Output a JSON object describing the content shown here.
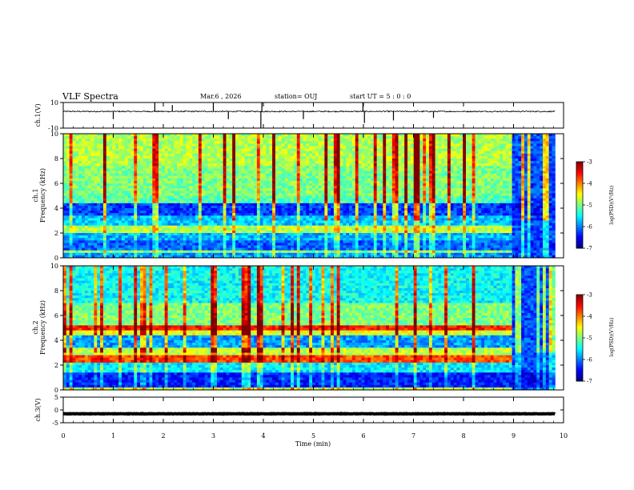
{
  "header": {
    "title": "VLF Spectra",
    "date": "Mar.6 , 2026",
    "station": "station= OUJ",
    "start": "start UT = 5 : 0 : 0"
  },
  "chart_data": [
    {
      "id": "ch1-waveform",
      "type": "line",
      "ylabel": "ch.1(V)",
      "ylim": [
        -10,
        10
      ],
      "yticks": [
        "10",
        "-10"
      ],
      "baseline": 3,
      "noise": 0.45,
      "spikes": [
        {
          "t": 1.0,
          "v": -3
        },
        {
          "t": 1.83,
          "v": 10
        },
        {
          "t": 2.18,
          "v": 8
        },
        {
          "t": 3.0,
          "v": 10
        },
        {
          "t": 3.3,
          "v": -3
        },
        {
          "t": 3.95,
          "v": -10
        },
        {
          "t": 3.97,
          "v": 10
        },
        {
          "t": 4.8,
          "v": -3
        },
        {
          "t": 5.99,
          "v": 10
        },
        {
          "t": 6.02,
          "v": -6
        },
        {
          "t": 6.6,
          "v": -4
        },
        {
          "t": 7.4,
          "v": -2
        }
      ]
    },
    {
      "id": "ch1-spectrogram",
      "type": "heatmap",
      "ylabel": "ch.1",
      "ylabel2": "Frequency (kHz)",
      "ylim": [
        0,
        10
      ],
      "yticks": [
        "0",
        "2",
        "4",
        "6",
        "8",
        "10"
      ],
      "bands": [
        {
          "f0": 0.0,
          "f1": 0.45,
          "level": 0.28
        },
        {
          "f0": 0.45,
          "f1": 0.7,
          "level": 0.5
        },
        {
          "f0": 0.7,
          "f1": 1.5,
          "level": 0.22
        },
        {
          "f0": 1.5,
          "f1": 2.1,
          "level": 0.3
        },
        {
          "f0": 2.1,
          "f1": 2.6,
          "level": 0.55
        },
        {
          "f0": 2.6,
          "f1": 3.4,
          "level": 0.32
        },
        {
          "f0": 3.4,
          "f1": 4.5,
          "level": 0.18
        },
        {
          "f0": 4.5,
          "f1": 5.0,
          "level": 0.46
        },
        {
          "f0": 5.0,
          "f1": 7.5,
          "level": 0.5
        },
        {
          "f0": 7.5,
          "f1": 10.0,
          "level": 0.55
        }
      ],
      "quiet_after_min": 9.0,
      "colorbar": {
        "label": "log(PSD)(V²/Hz)",
        "ticks": [
          "-3",
          "-4",
          "-5",
          "-6",
          "-7"
        ],
        "range": [
          -7,
          -3
        ]
      }
    },
    {
      "id": "ch2-spectrogram",
      "type": "heatmap",
      "ylabel": "ch.2",
      "ylabel2": "Frequency (kHz)",
      "ylim": [
        0,
        10
      ],
      "yticks": [
        "0",
        "2",
        "4",
        "6",
        "8",
        "10"
      ],
      "bands": [
        {
          "f0": 0.0,
          "f1": 0.3,
          "level": 0.55
        },
        {
          "f0": 0.3,
          "f1": 1.5,
          "level": 0.15
        },
        {
          "f0": 1.5,
          "f1": 2.2,
          "level": 0.36
        },
        {
          "f0": 2.2,
          "f1": 2.8,
          "level": 0.8
        },
        {
          "f0": 2.8,
          "f1": 3.5,
          "level": 0.56
        },
        {
          "f0": 3.5,
          "f1": 4.5,
          "level": 0.28
        },
        {
          "f0": 4.5,
          "f1": 4.9,
          "level": 0.6
        },
        {
          "f0": 4.9,
          "f1": 5.3,
          "level": 0.86
        },
        {
          "f0": 5.3,
          "f1": 7.0,
          "level": 0.5
        },
        {
          "f0": 7.0,
          "f1": 10.0,
          "level": 0.38
        }
      ],
      "quiet_after_min": 9.0,
      "colorbar": {
        "label": "log(PSD)(V²/Hz)",
        "ticks": [
          "-3",
          "-4",
          "-5",
          "-6",
          "-7"
        ],
        "range": [
          -7,
          -3
        ]
      }
    },
    {
      "id": "ch3-waveform",
      "type": "line",
      "ylabel": "ch.3(V)",
      "ylim": [
        -5,
        5
      ],
      "yticks": [
        "5",
        "0",
        "-5"
      ],
      "baseline": -1.5,
      "noise": 0.08,
      "spikes": []
    }
  ],
  "time_axis": {
    "xlabel": "Time (min)",
    "xlim": [
      0,
      10
    ],
    "xticks": [
      "0",
      "1",
      "2",
      "3",
      "4",
      "5",
      "6",
      "7",
      "8",
      "9",
      "10"
    ],
    "data_end_min": 9.83
  }
}
